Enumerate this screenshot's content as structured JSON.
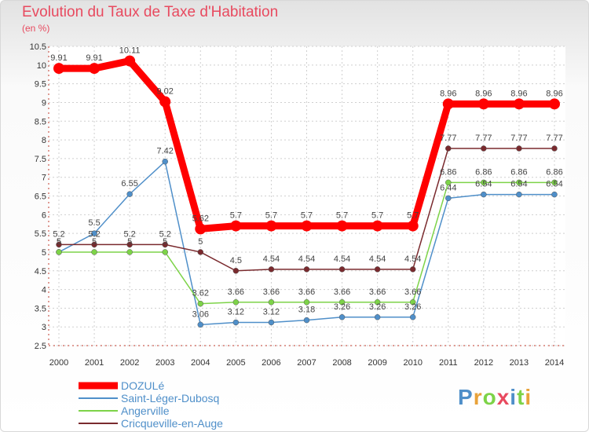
{
  "chart_data": {
    "type": "line",
    "title": "Evolution du Taux de Taxe d'Habitation",
    "unit_label": "(en %)",
    "x": [
      "2000",
      "2001",
      "2002",
      "2003",
      "2004",
      "2005",
      "2006",
      "2007",
      "2008",
      "2009",
      "2010",
      "2011",
      "2012",
      "2013",
      "2014"
    ],
    "ylim": [
      2.5,
      10.5
    ],
    "yticks": [
      "2.5",
      "3",
      "3.5",
      "4",
      "4.5",
      "5",
      "5.5",
      "6",
      "6.5",
      "7",
      "7.5",
      "8",
      "8.5",
      "9",
      "9.5",
      "10",
      "10.5"
    ],
    "grid": true,
    "legend_position": "bottom-left",
    "series": [
      {
        "name": "DOZULé",
        "color": "#ff0000",
        "values": [
          9.91,
          9.91,
          10.11,
          9.02,
          5.62,
          5.7,
          5.7,
          5.7,
          5.7,
          5.7,
          5.7,
          8.96,
          8.96,
          8.96,
          8.96
        ],
        "labels": [
          "9.91",
          "9.91",
          "10.11",
          "9.02",
          "5.62",
          "5.7",
          "5.7",
          "5.7",
          "5.7",
          "5.7",
          "5.7",
          "8.96",
          "8.96",
          "8.96",
          "8.96"
        ]
      },
      {
        "name": "Saint-Léger-Dubosq",
        "color": "#4f8fc9",
        "values": [
          5.0,
          5.5,
          6.55,
          7.42,
          3.06,
          3.12,
          3.12,
          3.18,
          3.26,
          3.26,
          3.26,
          6.44,
          6.54,
          6.54,
          6.54
        ],
        "labels": [
          "5",
          "5.5",
          "6.55",
          "7.42",
          "3.06",
          "3.12",
          "3.12",
          "3.18",
          "3.26",
          "3.26",
          "3.26",
          "6.44",
          "6.54",
          "6.54",
          "6.54"
        ]
      },
      {
        "name": "Angerville",
        "color": "#7dd348",
        "values": [
          5.0,
          5.0,
          5.0,
          5.0,
          3.62,
          3.66,
          3.66,
          3.66,
          3.66,
          3.66,
          3.66,
          6.86,
          6.86,
          6.86,
          6.86
        ],
        "labels": [
          "5",
          "5",
          "5",
          "5",
          "3.62",
          "3.66",
          "3.66",
          "3.66",
          "3.66",
          "3.66",
          "3.66",
          "6.86",
          "6.86",
          "6.86",
          "6.86"
        ]
      },
      {
        "name": "Cricqueville-en-Auge",
        "color": "#7a2a2e",
        "values": [
          5.2,
          5.2,
          5.2,
          5.2,
          5.0,
          4.5,
          4.54,
          4.54,
          4.54,
          4.54,
          4.54,
          7.77,
          7.77,
          7.77,
          7.77
        ],
        "labels": [
          "5.2",
          "5.2",
          "5.2",
          "5.2",
          "5",
          "4.5",
          "4.54",
          "4.54",
          "4.54",
          "4.54",
          "4.54",
          "7.77",
          "7.77",
          "7.77",
          "7.77"
        ]
      }
    ]
  },
  "logo": {
    "text": "Proxiti"
  }
}
